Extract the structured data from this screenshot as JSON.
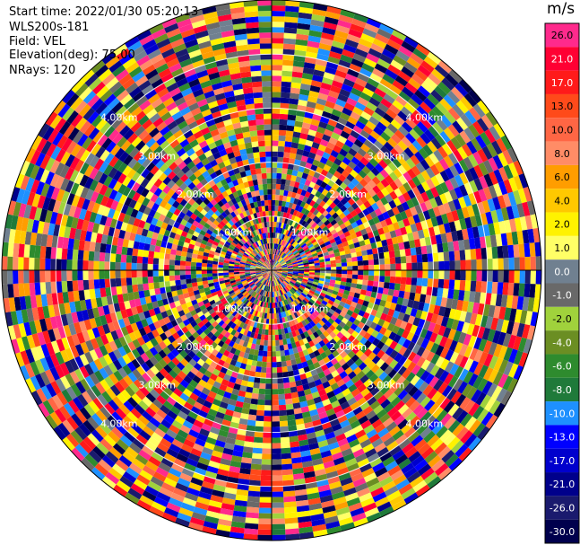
{
  "header": {
    "start_time": "Start time: 2022/01/30 05:20:13",
    "site": "WLS200s-181",
    "field": "Field: VEL",
    "elevation": "Elevation(deg): 75.00",
    "nrays": "NRays: 120"
  },
  "colorbar": {
    "unit": "m/s",
    "bins": [
      {
        "label": "26.0",
        "color": "#ff2a8c"
      },
      {
        "label": "21.0",
        "color": "#ff0033"
      },
      {
        "label": "17.0",
        "color": "#ff1a1a"
      },
      {
        "label": "13.0",
        "color": "#ff4a1a"
      },
      {
        "label": "10.0",
        "color": "#ff6644"
      },
      {
        "label": "8.0",
        "color": "#ff8c66"
      },
      {
        "label": "6.0",
        "color": "#ff9d00"
      },
      {
        "label": "4.0",
        "color": "#ffc800"
      },
      {
        "label": "2.0",
        "color": "#fff200"
      },
      {
        "label": "1.0",
        "color": "#ffff66"
      },
      {
        "label": "0.0",
        "color": "#708090"
      },
      {
        "label": "-1.0",
        "color": "#696969"
      },
      {
        "label": "-2.0",
        "color": "#a0d23c"
      },
      {
        "label": "-4.0",
        "color": "#6b8e23"
      },
      {
        "label": "-6.0",
        "color": "#2e8b2e"
      },
      {
        "label": "-8.0",
        "color": "#1f7a3a"
      },
      {
        "label": "-10.0",
        "color": "#1e90ff"
      },
      {
        "label": "-13.0",
        "color": "#0000ff"
      },
      {
        "label": "-17.0",
        "color": "#0000cd"
      },
      {
        "label": "-21.0",
        "color": "#00008b"
      },
      {
        "label": "-26.0",
        "color": "#1a1a6e"
      },
      {
        "label": "-30.0",
        "color": "#00004d"
      }
    ]
  },
  "chart_data": {
    "type": "heatmap",
    "projection": "polar-ppi",
    "nrays": 120,
    "range_rings_km": [
      1.0,
      2.0,
      3.0,
      4.0
    ],
    "ring_labels": [
      "1.00km",
      "2.00km",
      "3.00km",
      "4.00km"
    ],
    "max_range_km": 5.0,
    "gate_km": 0.1,
    "field": "VEL",
    "units": "m/s",
    "vmin": -30.0,
    "vmax": 26.0
  }
}
